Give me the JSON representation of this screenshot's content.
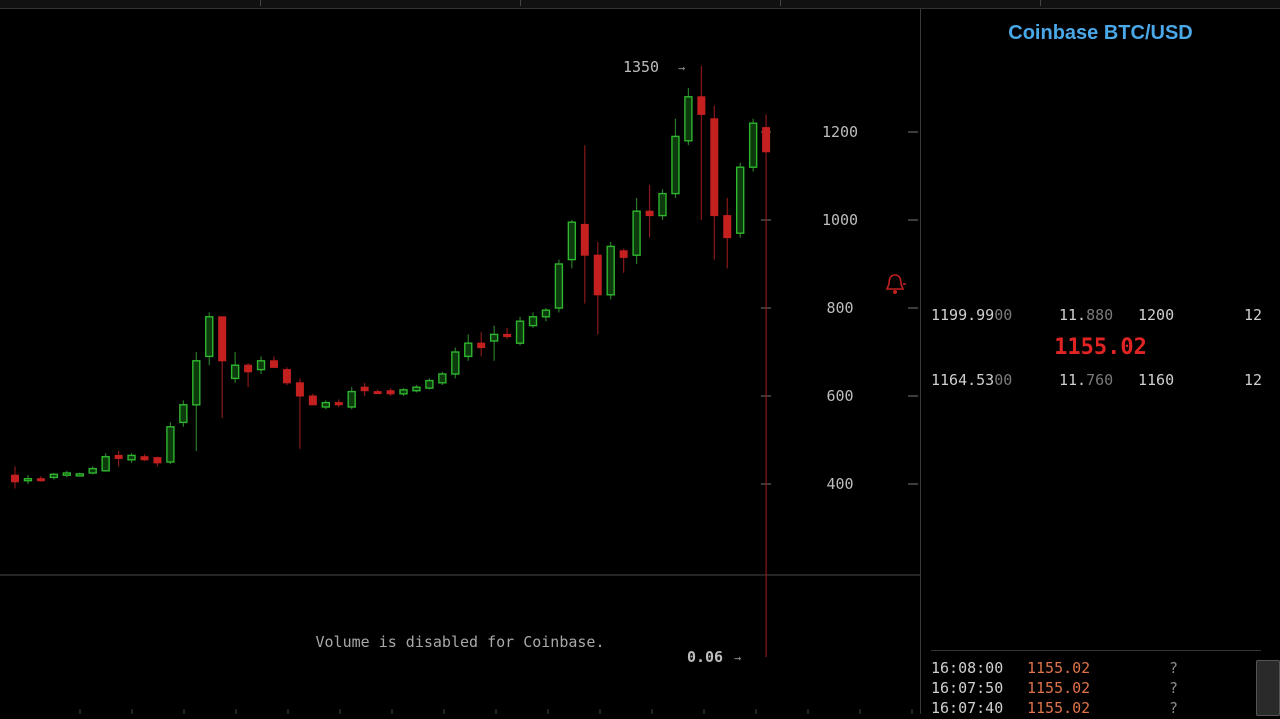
{
  "panel": {
    "title": "Coinbase BTC/USD",
    "orderbook": [
      {
        "price_main": "1199.99",
        "price_dim": "00",
        "size_main": "11.",
        "size_dim": "880",
        "level": "1200",
        "count": "12"
      },
      {
        "price_main": "1164.53",
        "price_dim": "00",
        "size_main": "11.",
        "size_dim": "760",
        "level": "1160",
        "count": "12"
      }
    ],
    "last_price": "1155.02",
    "trades": [
      {
        "time": "16:08:00",
        "price": "1155.02",
        "flag": "?"
      },
      {
        "time": "16:07:50",
        "price": "1155.02",
        "flag": "?"
      },
      {
        "time": "16:07:40",
        "price": "1155.02",
        "flag": "?"
      }
    ]
  },
  "chart_data": {
    "type": "candlestick",
    "exchange": "Coinbase",
    "pair": "BTC/USD",
    "y_ticks": [
      400,
      600,
      800,
      1000,
      1200
    ],
    "ylim": [
      0,
      1400
    ],
    "high_marker": "1350",
    "low_marker": "0.06",
    "volume_note": "Volume is disabled for Coinbase.",
    "colors": {
      "up": "#2fb52f",
      "down": "#c42020",
      "axis_text": "#bdbdbd",
      "bg": "#000000"
    },
    "candles": [
      {
        "o": 420,
        "h": 440,
        "l": 390,
        "c": 405
      },
      {
        "o": 408,
        "h": 420,
        "l": 400,
        "c": 412
      },
      {
        "o": 412,
        "h": 418,
        "l": 405,
        "c": 410
      },
      {
        "o": 415,
        "h": 425,
        "l": 410,
        "c": 422
      },
      {
        "o": 420,
        "h": 430,
        "l": 415,
        "c": 425
      },
      {
        "o": 422,
        "h": 426,
        "l": 418,
        "c": 423
      },
      {
        "o": 425,
        "h": 440,
        "l": 422,
        "c": 435
      },
      {
        "o": 430,
        "h": 470,
        "l": 428,
        "c": 462
      },
      {
        "o": 465,
        "h": 475,
        "l": 440,
        "c": 458
      },
      {
        "o": 455,
        "h": 470,
        "l": 448,
        "c": 465
      },
      {
        "o": 462,
        "h": 468,
        "l": 452,
        "c": 455
      },
      {
        "o": 460,
        "h": 462,
        "l": 440,
        "c": 448
      },
      {
        "o": 450,
        "h": 540,
        "l": 445,
        "c": 530
      },
      {
        "o": 540,
        "h": 590,
        "l": 530,
        "c": 580
      },
      {
        "o": 580,
        "h": 700,
        "l": 475,
        "c": 680
      },
      {
        "o": 690,
        "h": 790,
        "l": 670,
        "c": 780
      },
      {
        "o": 780,
        "h": 775,
        "l": 550,
        "c": 680
      },
      {
        "o": 640,
        "h": 700,
        "l": 630,
        "c": 670
      },
      {
        "o": 670,
        "h": 675,
        "l": 620,
        "c": 655
      },
      {
        "o": 660,
        "h": 690,
        "l": 650,
        "c": 680
      },
      {
        "o": 680,
        "h": 690,
        "l": 665,
        "c": 665
      },
      {
        "o": 660,
        "h": 665,
        "l": 625,
        "c": 630
      },
      {
        "o": 630,
        "h": 640,
        "l": 480,
        "c": 600
      },
      {
        "o": 600,
        "h": 605,
        "l": 580,
        "c": 580
      },
      {
        "o": 575,
        "h": 590,
        "l": 570,
        "c": 585
      },
      {
        "o": 585,
        "h": 592,
        "l": 575,
        "c": 580
      },
      {
        "o": 575,
        "h": 620,
        "l": 570,
        "c": 610
      },
      {
        "o": 620,
        "h": 630,
        "l": 600,
        "c": 612
      },
      {
        "o": 610,
        "h": 615,
        "l": 605,
        "c": 608
      },
      {
        "o": 612,
        "h": 618,
        "l": 600,
        "c": 605
      },
      {
        "o": 605,
        "h": 618,
        "l": 600,
        "c": 614
      },
      {
        "o": 612,
        "h": 625,
        "l": 608,
        "c": 620
      },
      {
        "o": 618,
        "h": 640,
        "l": 615,
        "c": 635
      },
      {
        "o": 630,
        "h": 655,
        "l": 625,
        "c": 650
      },
      {
        "o": 650,
        "h": 710,
        "l": 640,
        "c": 700
      },
      {
        "o": 690,
        "h": 740,
        "l": 680,
        "c": 720
      },
      {
        "o": 720,
        "h": 745,
        "l": 690,
        "c": 710
      },
      {
        "o": 725,
        "h": 760,
        "l": 680,
        "c": 740
      },
      {
        "o": 740,
        "h": 755,
        "l": 730,
        "c": 735
      },
      {
        "o": 720,
        "h": 780,
        "l": 715,
        "c": 770
      },
      {
        "o": 760,
        "h": 790,
        "l": 755,
        "c": 780
      },
      {
        "o": 780,
        "h": 800,
        "l": 770,
        "c": 795
      },
      {
        "o": 800,
        "h": 910,
        "l": 790,
        "c": 900
      },
      {
        "o": 910,
        "h": 1000,
        "l": 890,
        "c": 995
      },
      {
        "o": 990,
        "h": 1170,
        "l": 810,
        "c": 920
      },
      {
        "o": 920,
        "h": 950,
        "l": 740,
        "c": 830
      },
      {
        "o": 830,
        "h": 950,
        "l": 820,
        "c": 940
      },
      {
        "o": 930,
        "h": 935,
        "l": 880,
        "c": 915
      },
      {
        "o": 920,
        "h": 1050,
        "l": 900,
        "c": 1020
      },
      {
        "o": 1020,
        "h": 1080,
        "l": 960,
        "c": 1010
      },
      {
        "o": 1010,
        "h": 1070,
        "l": 1000,
        "c": 1060
      },
      {
        "o": 1060,
        "h": 1230,
        "l": 1050,
        "c": 1190
      },
      {
        "o": 1180,
        "h": 1300,
        "l": 1170,
        "c": 1280
      },
      {
        "o": 1280,
        "h": 1350,
        "l": 1000,
        "c": 1240
      },
      {
        "o": 1230,
        "h": 1260,
        "l": 910,
        "c": 1010
      },
      {
        "o": 1010,
        "h": 1050,
        "l": 890,
        "c": 960
      },
      {
        "o": 970,
        "h": 1130,
        "l": 960,
        "c": 1120
      },
      {
        "o": 1120,
        "h": 1230,
        "l": 1110,
        "c": 1220
      },
      {
        "o": 1210,
        "h": 1240,
        "l": 0.06,
        "c": 1155.02
      }
    ]
  }
}
